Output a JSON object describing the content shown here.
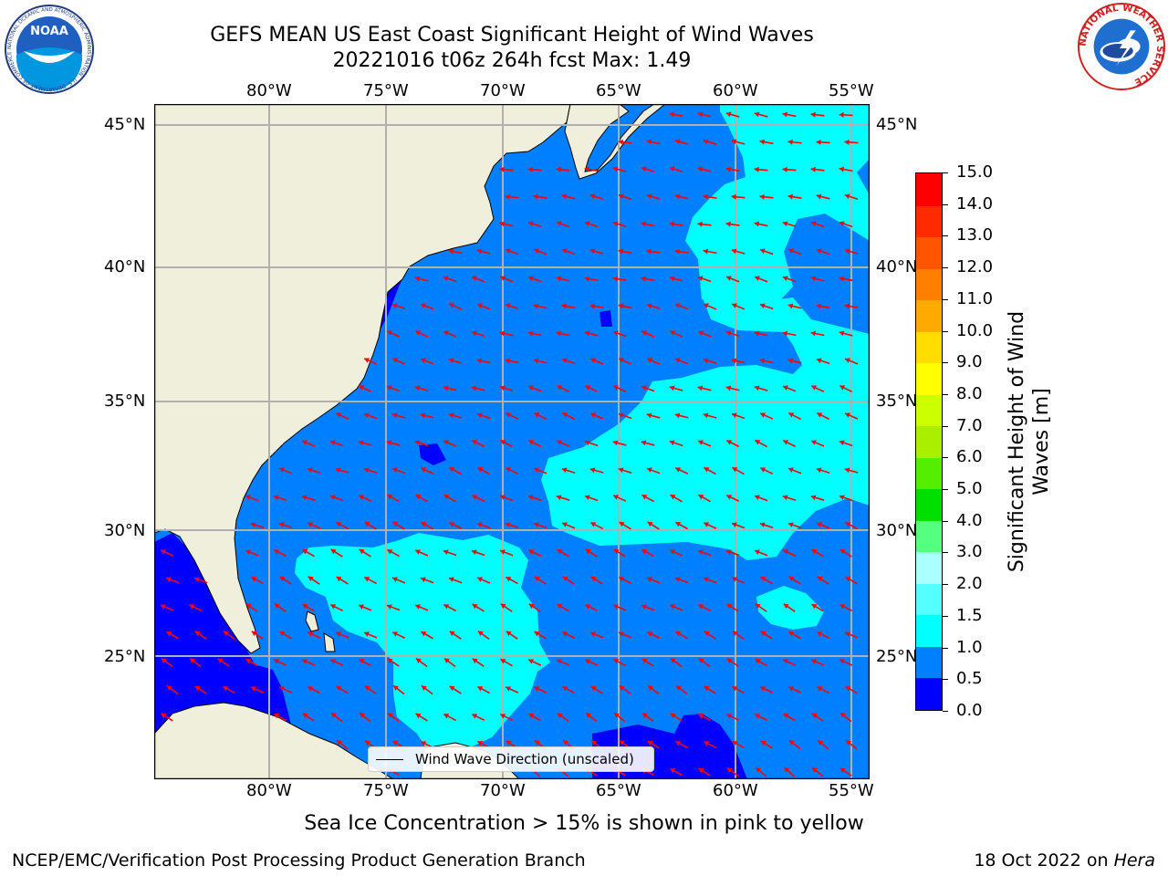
{
  "header": {
    "title_line1": "GEFS MEAN US East Coast Significant Height of Wind Waves",
    "title_line2": "20221016 t06z 264h fcst   Max: 1.49"
  },
  "logos": {
    "left": {
      "text": "NOAA",
      "ring_text": "NATIONAL OCEANIC AND ATMOSPHERIC ADMINISTRATION · U.S. DEPARTMENT OF COMMERCE"
    },
    "right": {
      "ring_text": "NATIONAL WEATHER SERVICE"
    }
  },
  "map": {
    "lon_labels": [
      "80°W",
      "75°W",
      "70°W",
      "65°W",
      "60°W",
      "55°W"
    ],
    "lat_labels": [
      "45°N",
      "40°N",
      "35°N",
      "30°N",
      "25°N"
    ],
    "legend_text": "Wind Wave Direction (unscaled)",
    "colors": {
      "land": "#efefdc",
      "band_0_0_5": "#0000ff",
      "band_0_5_1_0": "#0080ff",
      "band_1_0_1_5": "#00ffff",
      "arrow": "#ff0000",
      "grid": "#b0b0b0"
    }
  },
  "colorbar": {
    "label": "Significant Height of Wind Waves [m]",
    "ticks": [
      "0.0",
      "0.5",
      "1.0",
      "1.5",
      "2.0",
      "3.0",
      "4.0",
      "5.0",
      "6.0",
      "7.0",
      "8.0",
      "9.0",
      "10.0",
      "11.0",
      "12.0",
      "13.0",
      "14.0",
      "15.0"
    ],
    "colors": [
      "#0000ff",
      "#0080ff",
      "#00ffff",
      "#55ffff",
      "#aaffff",
      "#55ff80",
      "#00e000",
      "#55ee00",
      "#aaee00",
      "#ccff00",
      "#ffff00",
      "#ffdd00",
      "#ffaa00",
      "#ff8000",
      "#ff5500",
      "#ff2a00",
      "#ff0000"
    ]
  },
  "notes": {
    "sea_ice": "Sea Ice Concentration > 15% is shown in pink to yellow"
  },
  "footer": {
    "left": "NCEP/EMC/Verification Post Processing Product Generation Branch",
    "right_date": "18 Oct 2022 on ",
    "right_host": "Hera"
  }
}
